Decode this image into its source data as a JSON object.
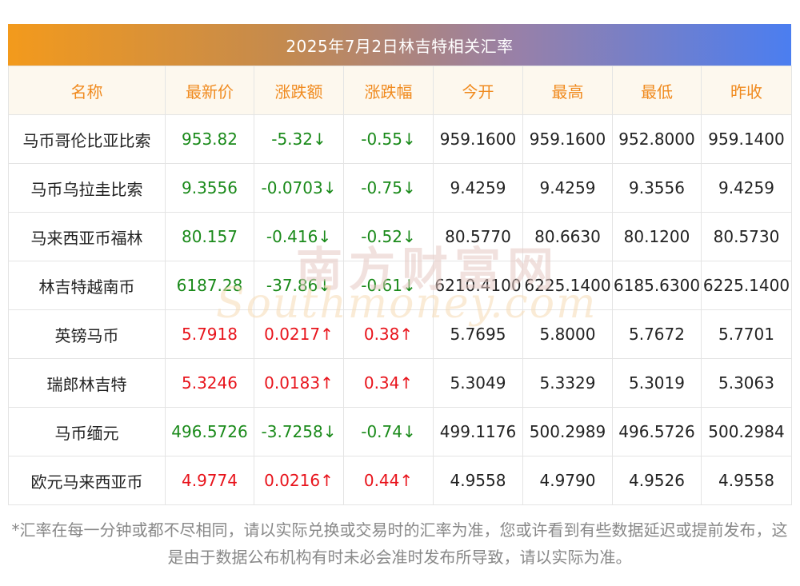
{
  "title": "2025年7月2日林吉特相关汇率",
  "headers": [
    "名称",
    "最新价",
    "涨跌额",
    "涨跌幅",
    "今开",
    "最高",
    "最低",
    "昨收"
  ],
  "rows": [
    {
      "name": "马币哥伦比亚比索",
      "latest": "953.82",
      "change": "-5.32↓",
      "pct": "-0.55↓",
      "open": "959.1600",
      "high": "959.1600",
      "low": "952.8000",
      "prev": "959.1400",
      "dir": "down"
    },
    {
      "name": "马币乌拉圭比索",
      "latest": "9.3556",
      "change": "-0.0703↓",
      "pct": "-0.75↓",
      "open": "9.4259",
      "high": "9.4259",
      "low": "9.3556",
      "prev": "9.4259",
      "dir": "down"
    },
    {
      "name": "马来西亚币福林",
      "latest": "80.157",
      "change": "-0.416↓",
      "pct": "-0.52↓",
      "open": "80.5770",
      "high": "80.6630",
      "low": "80.1200",
      "prev": "80.5730",
      "dir": "down"
    },
    {
      "name": "林吉特越南币",
      "latest": "6187.28",
      "change": "-37.86↓",
      "pct": "-0.61↓",
      "open": "6210.4100",
      "high": "6225.1400",
      "low": "6185.6300",
      "prev": "6225.1400",
      "dir": "down"
    },
    {
      "name": "英镑马币",
      "latest": "5.7918",
      "change": "0.0217↑",
      "pct": "0.38↑",
      "open": "5.7695",
      "high": "5.8000",
      "low": "5.7672",
      "prev": "5.7701",
      "dir": "up"
    },
    {
      "name": "瑞郎林吉特",
      "latest": "5.3246",
      "change": "0.0183↑",
      "pct": "0.34↑",
      "open": "5.3049",
      "high": "5.3329",
      "low": "5.3019",
      "prev": "5.3063",
      "dir": "up"
    },
    {
      "name": "马币缅元",
      "latest": "496.5726",
      "change": "-3.7258↓",
      "pct": "-0.74↓",
      "open": "499.1176",
      "high": "500.2989",
      "low": "496.5726",
      "prev": "500.2984",
      "dir": "down"
    },
    {
      "name": "欧元马来西亚币",
      "latest": "4.9774",
      "change": "0.0216↑",
      "pct": "0.44↑",
      "open": "4.9558",
      "high": "4.9790",
      "low": "4.9526",
      "prev": "4.9558",
      "dir": "up"
    }
  ],
  "watermark": {
    "cn": "南方财富网",
    "en": "Southmoney.com"
  },
  "footnote": "*汇率在每一分钟或都不尽相同，请以实际兑换或交易时的汇率为准，您或许看到有些数据延迟或提前发布，这是由于数据公布机构有时未必会准时发布所导致，请以实际为准。",
  "colors": {
    "up": "#e8141c",
    "down": "#1a8a1a",
    "header_text": "#f08a1e",
    "header_bg": "#fdf8ee"
  }
}
